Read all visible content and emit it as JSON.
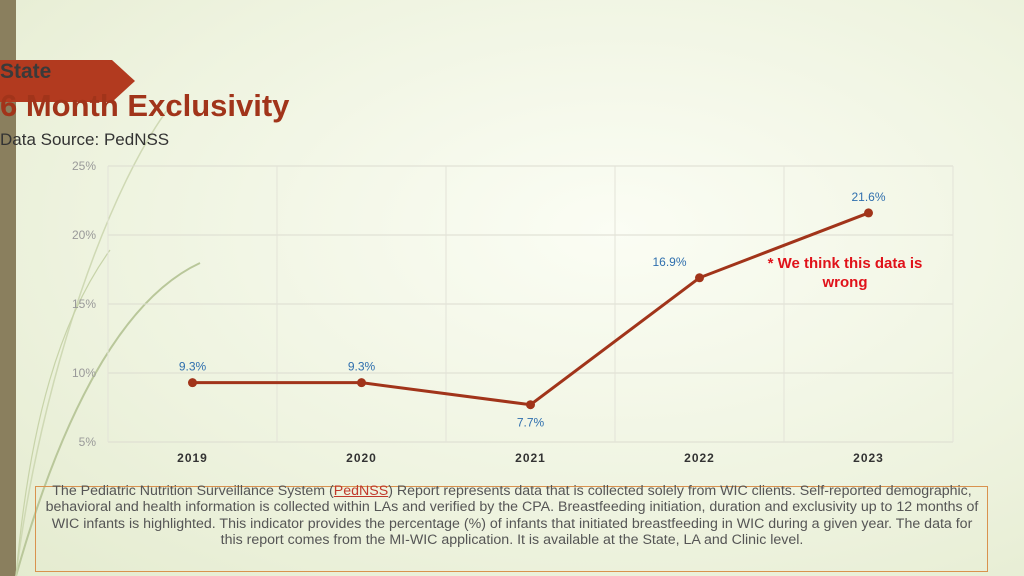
{
  "header": {
    "title": "State",
    "subtitle": "6 Month Exclusivity",
    "source": "Data Source: PedNSS"
  },
  "annotation": {
    "line1": "* We think this data is",
    "line2": "wrong"
  },
  "footer": {
    "before_link": "The Pediatric Nutrition Surveillance System (",
    "link": "PedNSS",
    "after_link": ") Report represents data that is collected solely from WIC clients. Self-reported demographic, behavioral and health information is collected within LAs and verified by the CPA. Breastfeeding initiation, duration and exclusivity up to 12 months of WIC infants is highlighted. This indicator provides the percentage (%) of infants that initiated breastfeeding in WIC during a given year. The data for this report comes from the MI-WIC application. It is available at the State, LA and Clinic level."
  },
  "chart_data": {
    "type": "line",
    "categories": [
      "2019",
      "2020",
      "2021",
      "2022",
      "2023"
    ],
    "values": [
      9.3,
      9.3,
      7.7,
      16.9,
      21.6
    ],
    "data_labels": [
      "9.3%",
      "9.3%",
      "7.7%",
      "16.9%",
      "21.6%"
    ],
    "y_ticks": [
      "5%",
      "10%",
      "15%",
      "20%",
      "25%"
    ],
    "ylim": [
      5,
      25
    ],
    "grid": true,
    "line_color": "#a1341a",
    "label_color": "#2f6fae"
  }
}
